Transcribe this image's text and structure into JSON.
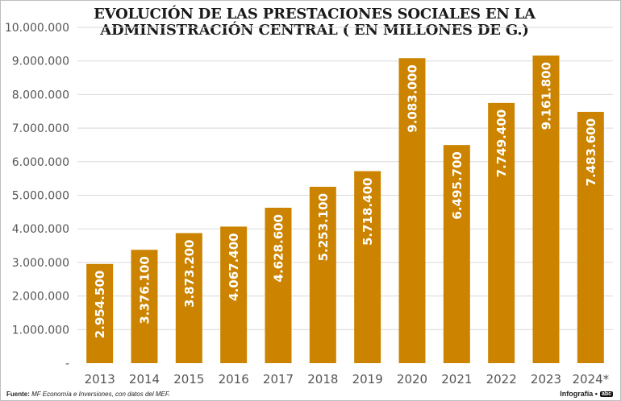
{
  "chart_data": {
    "type": "bar",
    "title_lines": [
      "EVOLUCIÓN DE LAS PRESTACIONES SOCIALES EN LA",
      "ADMINISTRACIÓN CENTRAL ( EN MILLONES DE G.)"
    ],
    "categories": [
      "2013",
      "2014",
      "2015",
      "2016",
      "2017",
      "2018",
      "2019",
      "2020",
      "2021",
      "2022",
      "2023",
      "2024*"
    ],
    "values": [
      2954500,
      3376100,
      3873200,
      4067400,
      4628600,
      5253100,
      5718400,
      9083000,
      6495700,
      7749400,
      9161800,
      7483600
    ],
    "value_labels": [
      "2.954.500",
      "3.376.100",
      "3.873.200",
      "4.067.400",
      "4.628.600",
      "5.253.100",
      "5.718.400",
      "9.083.000",
      "6.495.700",
      "7.749.400",
      "9.161.800",
      "7.483.600"
    ],
    "ylim": [
      0,
      10000000
    ],
    "yticks": [
      0,
      1000000,
      2000000,
      3000000,
      4000000,
      5000000,
      6000000,
      7000000,
      8000000,
      9000000,
      10000000
    ],
    "ytick_labels": [
      "-",
      "1.000.000",
      "2.000.000",
      "3.000.000",
      "4.000.000",
      "5.000.000",
      "6.000.000",
      "7.000.000",
      "8.000.000",
      "9.000.000",
      "10.000.000"
    ],
    "grid": true,
    "bar_color": "#cc8400",
    "grid_color": "#d9d9d9"
  },
  "footer": {
    "source_label": "Fuente:",
    "source_text": "MF Economía e Inversiones, con datos del MEF.",
    "credit": "Infografía",
    "logo_text": "abc"
  }
}
